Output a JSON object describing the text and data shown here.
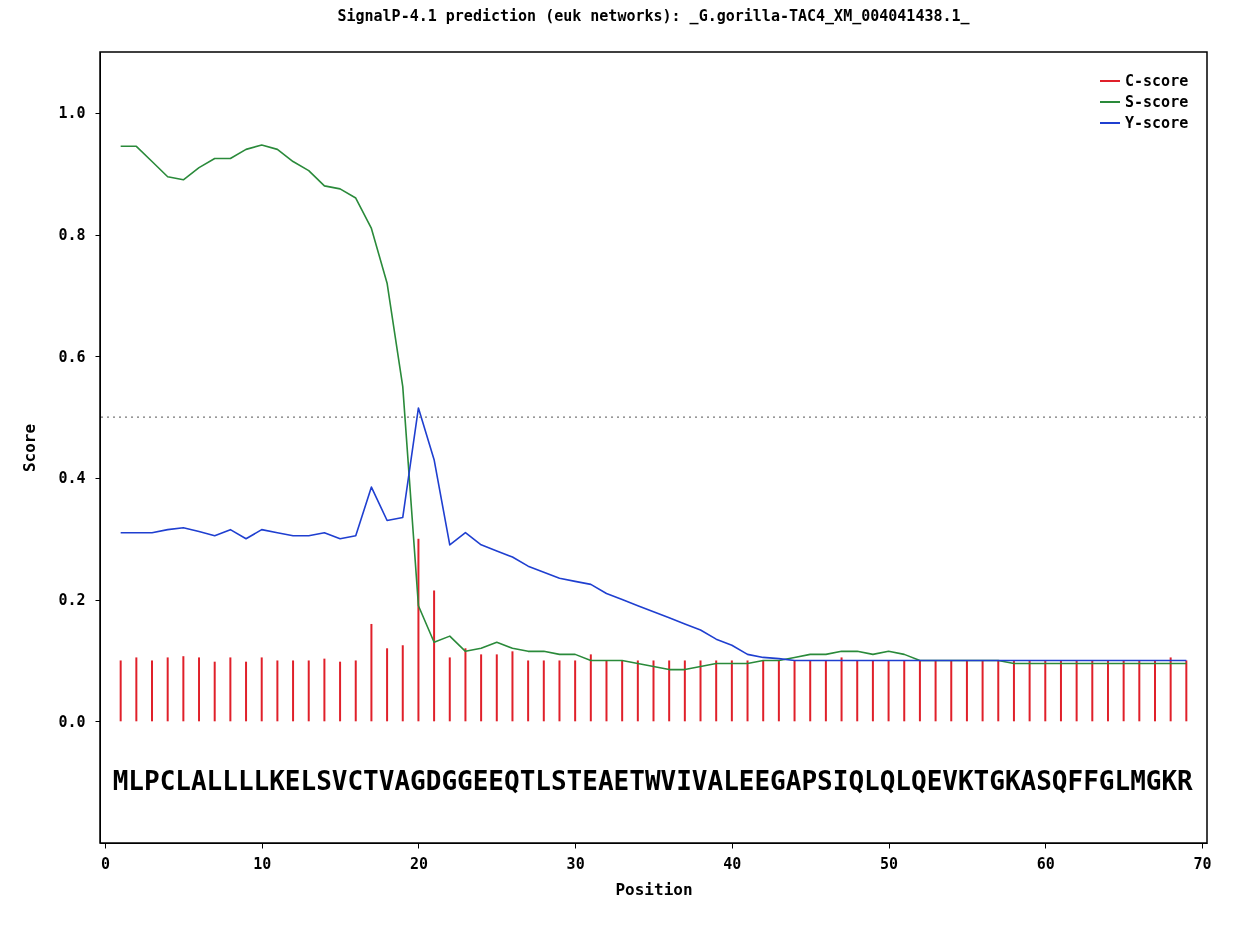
{
  "chart_data": {
    "type": "line",
    "title": "SignalP-4.1 prediction (euk networks): _G.gorilla-TAC4_XM_004041438.1_",
    "xlabel": "Position",
    "ylabel": "Score",
    "x": [
      1,
      2,
      3,
      4,
      5,
      6,
      7,
      8,
      9,
      10,
      11,
      12,
      13,
      14,
      15,
      16,
      17,
      18,
      19,
      20,
      21,
      22,
      23,
      24,
      25,
      26,
      27,
      28,
      29,
      30,
      31,
      32,
      33,
      34,
      35,
      36,
      37,
      38,
      39,
      40,
      41,
      42,
      43,
      44,
      45,
      46,
      47,
      48,
      49,
      50,
      51,
      52,
      53,
      54,
      55,
      56,
      57,
      58,
      59,
      60,
      61,
      62,
      63,
      64,
      65,
      66,
      67,
      68,
      69
    ],
    "series": [
      {
        "name": "C-score",
        "type": "bar",
        "color": "#e0202a",
        "values": [
          0.1,
          0.105,
          0.1,
          0.105,
          0.107,
          0.105,
          0.098,
          0.105,
          0.098,
          0.105,
          0.1,
          0.1,
          0.1,
          0.103,
          0.098,
          0.1,
          0.16,
          0.12,
          0.125,
          0.3,
          0.215,
          0.105,
          0.12,
          0.11,
          0.11,
          0.115,
          0.1,
          0.1,
          0.1,
          0.1,
          0.11,
          0.1,
          0.1,
          0.1,
          0.1,
          0.1,
          0.1,
          0.1,
          0.1,
          0.1,
          0.1,
          0.1,
          0.1,
          0.1,
          0.1,
          0.1,
          0.105,
          0.1,
          0.1,
          0.1,
          0.1,
          0.1,
          0.1,
          0.1,
          0.1,
          0.1,
          0.1,
          0.1,
          0.1,
          0.1,
          0.1,
          0.1,
          0.1,
          0.1,
          0.1,
          0.1,
          0.1,
          0.105,
          0.1
        ]
      },
      {
        "name": "S-score",
        "color": "#2a8a3a",
        "values": [
          0.945,
          0.945,
          0.92,
          0.895,
          0.89,
          0.91,
          0.925,
          0.925,
          0.94,
          0.947,
          0.94,
          0.92,
          0.905,
          0.88,
          0.875,
          0.86,
          0.81,
          0.72,
          0.55,
          0.19,
          0.13,
          0.14,
          0.115,
          0.12,
          0.13,
          0.12,
          0.115,
          0.115,
          0.11,
          0.11,
          0.1,
          0.1,
          0.1,
          0.095,
          0.09,
          0.085,
          0.085,
          0.09,
          0.095,
          0.095,
          0.095,
          0.1,
          0.1,
          0.105,
          0.11,
          0.11,
          0.115,
          0.115,
          0.11,
          0.115,
          0.11,
          0.1,
          0.1,
          0.1,
          0.1,
          0.1,
          0.1,
          0.095,
          0.095,
          0.095,
          0.095,
          0.095,
          0.095,
          0.095,
          0.095,
          0.095,
          0.095,
          0.095,
          0.095
        ]
      },
      {
        "name": "Y-score",
        "color": "#1f3fd0",
        "values": [
          0.31,
          0.31,
          0.31,
          0.315,
          0.318,
          0.312,
          0.305,
          0.315,
          0.3,
          0.315,
          0.31,
          0.305,
          0.305,
          0.31,
          0.3,
          0.305,
          0.385,
          0.33,
          0.335,
          0.515,
          0.43,
          0.29,
          0.31,
          0.29,
          0.28,
          0.27,
          0.255,
          0.245,
          0.235,
          0.23,
          0.225,
          0.21,
          0.2,
          0.19,
          0.18,
          0.17,
          0.16,
          0.15,
          0.135,
          0.125,
          0.11,
          0.105,
          0.103,
          0.1,
          0.1,
          0.1,
          0.1,
          0.1,
          0.1,
          0.1,
          0.1,
          0.1,
          0.1,
          0.1,
          0.1,
          0.1,
          0.1,
          0.1,
          0.1,
          0.1,
          0.1,
          0.1,
          0.1,
          0.1,
          0.1,
          0.1,
          0.1,
          0.1,
          0.1
        ]
      }
    ],
    "xlim": [
      0,
      70
    ],
    "xticks": [
      0,
      10,
      20,
      30,
      40,
      50,
      60,
      70
    ],
    "ylim": [
      -0.2,
      1.1
    ],
    "yticks": [
      {
        "value": 0,
        "label": "0.0"
      },
      0.2,
      0.4,
      0.6,
      0.8,
      {
        "value": 1,
        "label": "1.0"
      }
    ],
    "ref_lines": [
      {
        "axis": "y",
        "value": 0.5,
        "color": "#777777",
        "line_style": "dotted"
      }
    ],
    "annotations": [
      "MLPCLALLLLKELSVCTVAGDGGEEQTLSTEAETWVIVALEEGAPSIQLQLQEVKTGKASQFFGLMGKR"
    ],
    "legend": "top right",
    "grid": false
  }
}
